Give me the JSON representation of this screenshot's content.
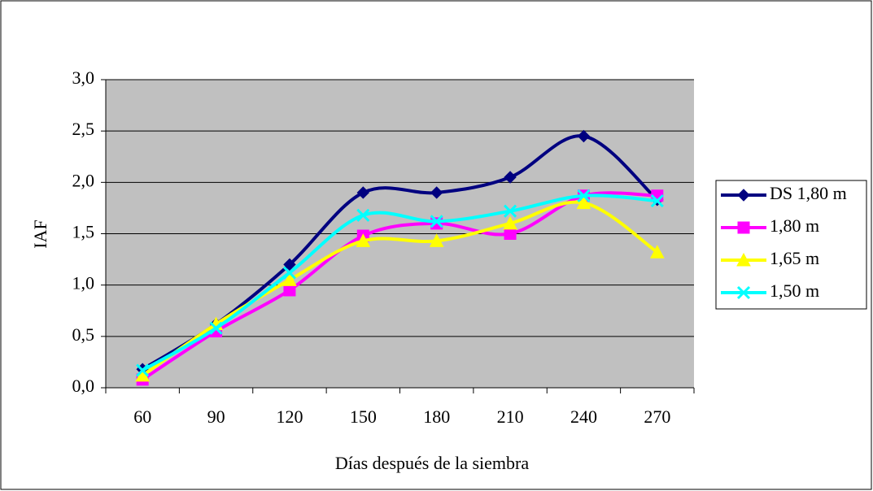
{
  "chart_data": {
    "type": "line",
    "x_label": "Días después de la siembra",
    "y_label": "IAF",
    "categories": [
      "60",
      "90",
      "120",
      "150",
      "180",
      "210",
      "240",
      "270"
    ],
    "series": [
      {
        "name": "DS 1,80 m",
        "color": "#000080",
        "marker": "diamond",
        "values": [
          0.18,
          0.62,
          1.2,
          1.9,
          1.9,
          2.05,
          2.45,
          1.83
        ]
      },
      {
        "name": "1,80 m",
        "color": "#ff00ff",
        "marker": "square",
        "values": [
          0.08,
          0.55,
          0.95,
          1.48,
          1.6,
          1.5,
          1.87,
          1.87
        ]
      },
      {
        "name": "1,65 m",
        "color": "#ffff00",
        "marker": "triangle",
        "values": [
          0.12,
          0.62,
          1.05,
          1.43,
          1.43,
          1.6,
          1.8,
          1.32
        ]
      },
      {
        "name": "1,50 m",
        "color": "#00ffff",
        "marker": "x",
        "values": [
          0.17,
          0.58,
          1.12,
          1.68,
          1.62,
          1.72,
          1.87,
          1.82
        ]
      }
    ],
    "ylim": [
      0,
      3
    ],
    "yticks": [
      {
        "value": 0,
        "label": "0,0"
      },
      {
        "value": 0.5,
        "label": "0,5"
      },
      {
        "value": 1,
        "label": "1,0"
      },
      {
        "value": 1.5,
        "label": "1,5"
      },
      {
        "value": 2,
        "label": "2,0"
      },
      {
        "value": 2.5,
        "label": "2,5"
      },
      {
        "value": 3,
        "label": "3,0"
      }
    ],
    "grid": true,
    "smooth": true,
    "legend": "right"
  }
}
